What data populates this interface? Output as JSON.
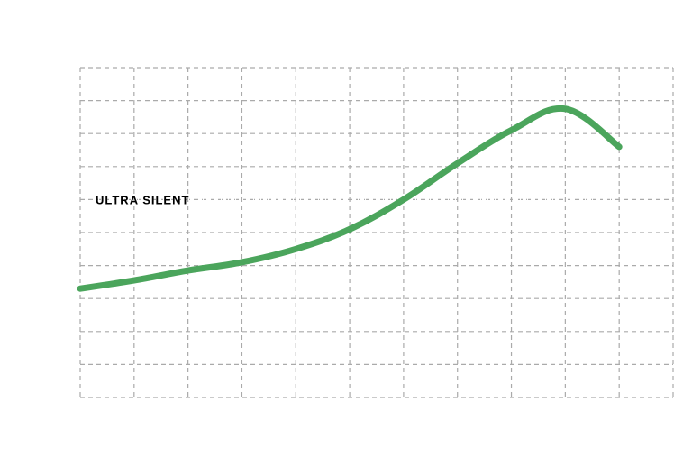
{
  "chart_data": {
    "type": "line",
    "title": "",
    "xlabel": "",
    "ylabel": "",
    "xlim": [
      0,
      11
    ],
    "ylim": [
      0,
      10
    ],
    "grid": true,
    "x": [
      0,
      1,
      2,
      3,
      4,
      5,
      6,
      7,
      8,
      9,
      10
    ],
    "series": [
      {
        "color": "#4ba55c",
        "values": [
          3.3,
          3.55,
          3.85,
          4.1,
          4.5,
          5.1,
          6.0,
          7.1,
          8.1,
          8.75,
          7.6
        ]
      }
    ],
    "reference_line": {
      "y": 6.0,
      "label": "ULTRA SILENT",
      "color": "#ffffff"
    }
  }
}
